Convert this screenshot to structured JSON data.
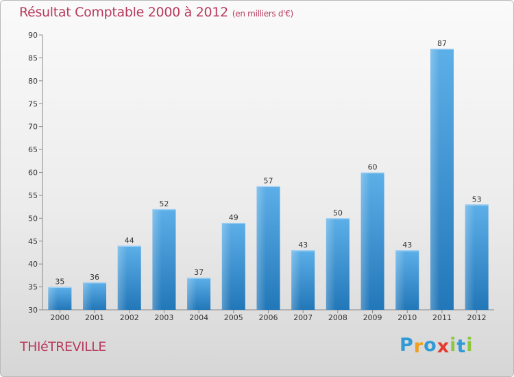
{
  "chart_data": {
    "type": "bar",
    "title": "Résultat Comptable 2000 à 2012",
    "subtitle": "(en milliers d'€)",
    "categories": [
      "2000",
      "2001",
      "2002",
      "2003",
      "2004",
      "2005",
      "2006",
      "2007",
      "2008",
      "2009",
      "2010",
      "2011",
      "2012"
    ],
    "values": [
      35,
      36,
      44,
      52,
      37,
      49,
      57,
      43,
      50,
      60,
      43,
      87,
      53
    ],
    "ylim": [
      30,
      90
    ],
    "yticks": [
      30,
      35,
      40,
      45,
      50,
      55,
      60,
      65,
      70,
      75,
      80,
      85,
      90
    ],
    "xlabel": "",
    "ylabel": "",
    "grid": false,
    "bar_color": "#3f94d6"
  },
  "footer": {
    "commune": "THIéTREVILLE",
    "brand_letters": [
      {
        "ch": "P",
        "color": "#2f9ad6"
      },
      {
        "ch": "r",
        "color": "#f0a01c"
      },
      {
        "ch": "o",
        "color": "#2f9ad6"
      },
      {
        "ch": "x",
        "color": "#e53a2f"
      },
      {
        "ch": "i",
        "color": "#8dc63f"
      },
      {
        "ch": "t",
        "color": "#2f9ad6"
      },
      {
        "ch": "i",
        "color": "#8dc63f"
      }
    ]
  }
}
